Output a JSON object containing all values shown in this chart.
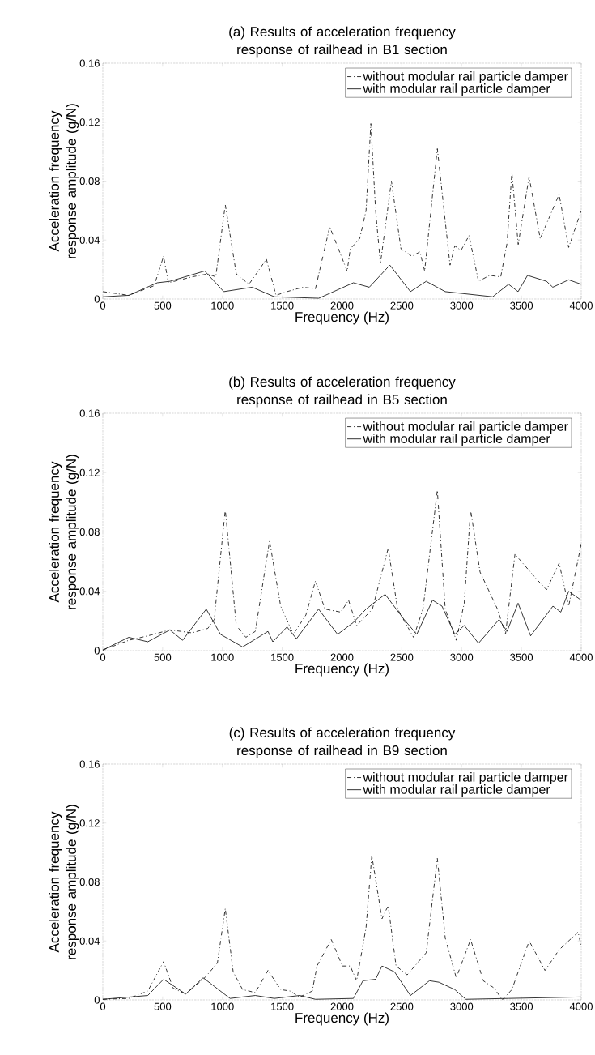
{
  "chart_data": [
    {
      "type": "line",
      "title": "(a) Results of acceleration frequency response of railhead in B1 section",
      "xlabel": "Frequency (Hz)",
      "ylabel": "Acceleration frequency response amplitude (g/N)",
      "xlim": [
        0,
        4000
      ],
      "xticks": [
        0,
        500,
        1000,
        1500,
        2000,
        2500,
        3000,
        3500,
        4000
      ],
      "ylim": [
        0,
        0.16
      ],
      "yticks": [
        0,
        0.04,
        0.08,
        0.12,
        0.16
      ],
      "legend": "top right",
      "series": [
        {
          "name": "without modular rail particle damper",
          "color": "#000000",
          "line_style": "dashed",
          "x": [
            0,
            217,
            429,
            508,
            548,
            746,
            878,
            944,
            1024,
            1116,
            1222,
            1368,
            1448,
            1540,
            1672,
            1778,
            1897,
            2043,
            2069,
            2148,
            2201,
            2241,
            2281,
            2321,
            2413,
            2493,
            2585,
            2651,
            2691,
            2797,
            2903,
            2943,
            2995,
            3062,
            3141,
            3234,
            3327,
            3380,
            3420,
            3473,
            3564,
            3657,
            3815,
            3895,
            4000
          ],
          "values": [
            0.005,
            0.0025,
            0.009,
            0.029,
            0.011,
            0.015,
            0.017,
            0.015,
            0.064,
            0.017,
            0.01,
            0.027,
            0.0025,
            0.005,
            0.008,
            0.007,
            0.049,
            0.019,
            0.034,
            0.041,
            0.06,
            0.119,
            0.06,
            0.024,
            0.08,
            0.034,
            0.029,
            0.032,
            0.019,
            0.102,
            0.023,
            0.036,
            0.033,
            0.043,
            0.012,
            0.016,
            0.015,
            0.038,
            0.086,
            0.037,
            0.083,
            0.041,
            0.071,
            0.035,
            0.06
          ]
        },
        {
          "name": "with modular rail particle damper",
          "color": "#000000",
          "line_style": "solid",
          "x": [
            0,
            217,
            455,
            561,
            852,
            1011,
            1249,
            1434,
            1805,
            2095,
            2228,
            2400,
            2572,
            2704,
            2863,
            3260,
            3392,
            3472,
            3551,
            3710,
            3762,
            3895,
            4000
          ],
          "values": [
            0.0015,
            0.0025,
            0.011,
            0.012,
            0.019,
            0.005,
            0.008,
            0.0015,
            0.0005,
            0.011,
            0.008,
            0.023,
            0.005,
            0.012,
            0.005,
            0.0015,
            0.01,
            0.005,
            0.016,
            0.012,
            0.008,
            0.013,
            0.01
          ]
        }
      ]
    },
    {
      "type": "line",
      "title": "(b) Results of acceleration frequency response of railhead in B5 section",
      "xlabel": "Frequency (Hz)",
      "ylabel": "Acceleration frequency response amplitude (g/N)",
      "xlim": [
        0,
        4000
      ],
      "xticks": [
        0,
        500,
        1000,
        1500,
        2000,
        2500,
        3000,
        3500,
        4000
      ],
      "ylim": [
        0,
        0.16
      ],
      "yticks": [
        0,
        0.04,
        0.08,
        0.12,
        0.16
      ],
      "legend": "top right",
      "series": [
        {
          "name": "without modular rail particle damper",
          "color": "#000000",
          "line_style": "dashed",
          "x": [
            0,
            217,
            376,
            561,
            746,
            878,
            931,
            1024,
            1116,
            1196,
            1275,
            1394,
            1487,
            1593,
            1698,
            1778,
            1857,
            1990,
            2055,
            2122,
            2254,
            2386,
            2465,
            2598,
            2677,
            2797,
            2863,
            2955,
            3022,
            3075,
            3154,
            3300,
            3367,
            3446,
            3618,
            3710,
            3815,
            3895,
            4000
          ],
          "values": [
            0.0004,
            0.007,
            0.01,
            0.014,
            0.012,
            0.015,
            0.021,
            0.095,
            0.017,
            0.009,
            0.013,
            0.074,
            0.03,
            0.011,
            0.024,
            0.047,
            0.028,
            0.026,
            0.034,
            0.017,
            0.028,
            0.069,
            0.028,
            0.009,
            0.028,
            0.108,
            0.028,
            0.007,
            0.032,
            0.095,
            0.053,
            0.028,
            0.011,
            0.065,
            0.049,
            0.041,
            0.059,
            0.03,
            0.072
          ]
        },
        {
          "name": "with modular rail particle damper",
          "color": "#000000",
          "line_style": "solid",
          "x": [
            0,
            217,
            376,
            561,
            667,
            865,
            984,
            1169,
            1381,
            1421,
            1540,
            1619,
            1804,
            1963,
            2095,
            2201,
            2360,
            2519,
            2625,
            2757,
            2836,
            2943,
            3022,
            3141,
            3313,
            3380,
            3472,
            3577,
            3763,
            3829,
            3895,
            4000
          ],
          "values": [
            0.0004,
            0.009,
            0.006,
            0.014,
            0.007,
            0.028,
            0.011,
            0.0025,
            0.013,
            0.006,
            0.016,
            0.008,
            0.028,
            0.011,
            0.019,
            0.028,
            0.038,
            0.021,
            0.011,
            0.034,
            0.03,
            0.011,
            0.017,
            0.005,
            0.021,
            0.013,
            0.032,
            0.01,
            0.03,
            0.026,
            0.04,
            0.034
          ]
        }
      ]
    },
    {
      "type": "line",
      "title": "(c) Results of acceleration frequency response of railhead in B9 section",
      "xlabel": "Frequency (Hz)",
      "ylabel": "Acceleration frequency response amplitude (g/N)",
      "xlim": [
        0,
        4000
      ],
      "xticks": [
        0,
        500,
        1000,
        1500,
        2000,
        2500,
        3000,
        3500,
        4000
      ],
      "ylim": [
        0,
        0.16
      ],
      "yticks": [
        0,
        0.04,
        0.08,
        0.12,
        0.16
      ],
      "legend": "top right",
      "series": [
        {
          "name": "without modular rail particle damper",
          "color": "#000000",
          "line_style": "dashed",
          "x": [
            0,
            217,
            376,
            508,
            587,
            693,
            852,
            958,
            1024,
            1090,
            1169,
            1275,
            1381,
            1487,
            1566,
            1646,
            1751,
            1791,
            1910,
            2003,
            2069,
            2122,
            2201,
            2249,
            2334,
            2386,
            2452,
            2545,
            2704,
            2797,
            2863,
            2955,
            3075,
            3181,
            3273,
            3340,
            3420,
            3565,
            3697,
            3815,
            3974,
            4000
          ],
          "values": [
            0.0004,
            0.001,
            0.006,
            0.026,
            0.008,
            0.004,
            0.015,
            0.025,
            0.062,
            0.019,
            0.007,
            0.005,
            0.02,
            0.007,
            0.006,
            0.002,
            0.006,
            0.023,
            0.041,
            0.023,
            0.023,
            0.013,
            0.049,
            0.098,
            0.055,
            0.064,
            0.023,
            0.017,
            0.032,
            0.096,
            0.042,
            0.015,
            0.041,
            0.013,
            0.008,
            0,
            0.007,
            0.04,
            0.02,
            0.034,
            0.046,
            0.036
          ]
        },
        {
          "name": "with modular rail particle damper",
          "color": "#000000",
          "line_style": "solid",
          "x": [
            0,
            376,
            508,
            693,
            839,
            1064,
            1275,
            1434,
            1646,
            1778,
            2095,
            2175,
            2281,
            2334,
            2439,
            2572,
            2731,
            2810,
            2943,
            3035,
            3393,
            4000
          ],
          "values": [
            0.0004,
            0.003,
            0.014,
            0.004,
            0.015,
            0.001,
            0.003,
            0.001,
            0.003,
            0.0004,
            0.001,
            0.013,
            0.014,
            0.023,
            0.019,
            0.003,
            0.013,
            0.012,
            0.007,
            0.0004,
            0.001,
            0.002
          ]
        }
      ]
    }
  ]
}
